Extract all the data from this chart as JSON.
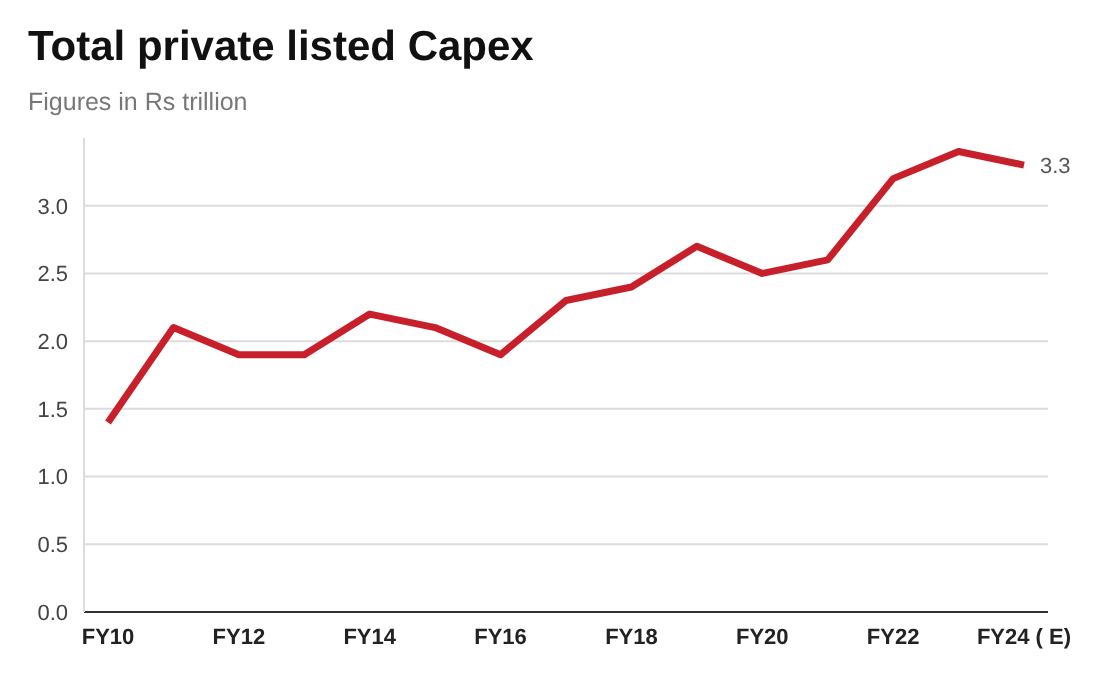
{
  "chart_data": {
    "type": "line",
    "title": "Total private listed Capex",
    "subtitle": "Figures in Rs trillion",
    "categories": [
      "FY10",
      null,
      "FY12",
      null,
      "FY14",
      null,
      "FY16",
      null,
      "FY18",
      null,
      "FY20",
      null,
      "FY22",
      null,
      "FY24 ( E)"
    ],
    "series": [
      {
        "color": "#c8202a",
        "values": [
          1.4,
          2.1,
          1.9,
          1.9,
          2.2,
          2.1,
          1.9,
          2.3,
          2.4,
          2.7,
          2.5,
          2.6,
          3.2,
          3.4,
          3.3
        ],
        "value_labels": [
          null,
          null,
          null,
          null,
          null,
          null,
          null,
          null,
          null,
          null,
          null,
          null,
          null,
          null,
          "3.3"
        ]
      }
    ],
    "ylim": [
      0,
      3.5
    ],
    "yticks": [
      {
        "value": 0,
        "label": "0.0"
      },
      {
        "value": 0.5,
        "label": "0.5"
      },
      {
        "value": 1,
        "label": "1.0"
      },
      {
        "value": 1.5,
        "label": "1.5"
      },
      {
        "value": 2,
        "label": "2.0"
      },
      {
        "value": 2.5,
        "label": "2.5"
      },
      {
        "value": 3,
        "label": "3.0"
      }
    ],
    "grid": "y",
    "legend": false,
    "marker": "none",
    "line_style": "solid"
  }
}
